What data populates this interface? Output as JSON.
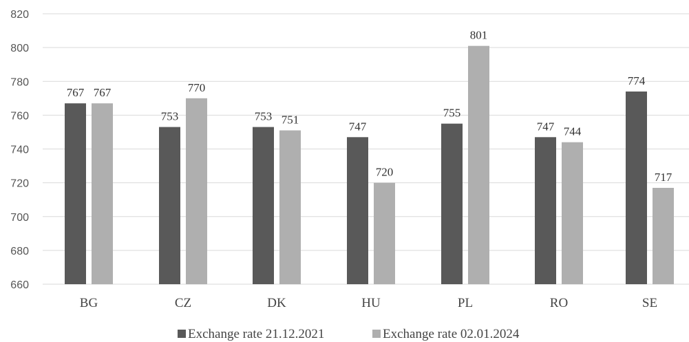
{
  "chart_data": {
    "type": "bar",
    "categories": [
      "BG",
      "CZ",
      "DK",
      "HU",
      "PL",
      "RO",
      "SE"
    ],
    "series": [
      {
        "name": "Exchange rate 21.12.2021",
        "values": [
          767,
          753,
          753,
          747,
          755,
          747,
          774
        ],
        "color": "#595959"
      },
      {
        "name": "Exchange rate 02.01.2024",
        "values": [
          767,
          770,
          751,
          720,
          801,
          744,
          717
        ],
        "color": "#afafaf"
      }
    ],
    "data_labels": [
      [
        "767",
        "753",
        "753",
        "747",
        "755",
        "747",
        "774"
      ],
      [
        "767",
        "770",
        "751",
        "720",
        "801",
        "744",
        "717"
      ]
    ],
    "ylim": [
      660,
      820
    ],
    "yticks": [
      660,
      680,
      700,
      720,
      740,
      760,
      780,
      800,
      820
    ],
    "grid": true,
    "legend_position": "bottom"
  }
}
